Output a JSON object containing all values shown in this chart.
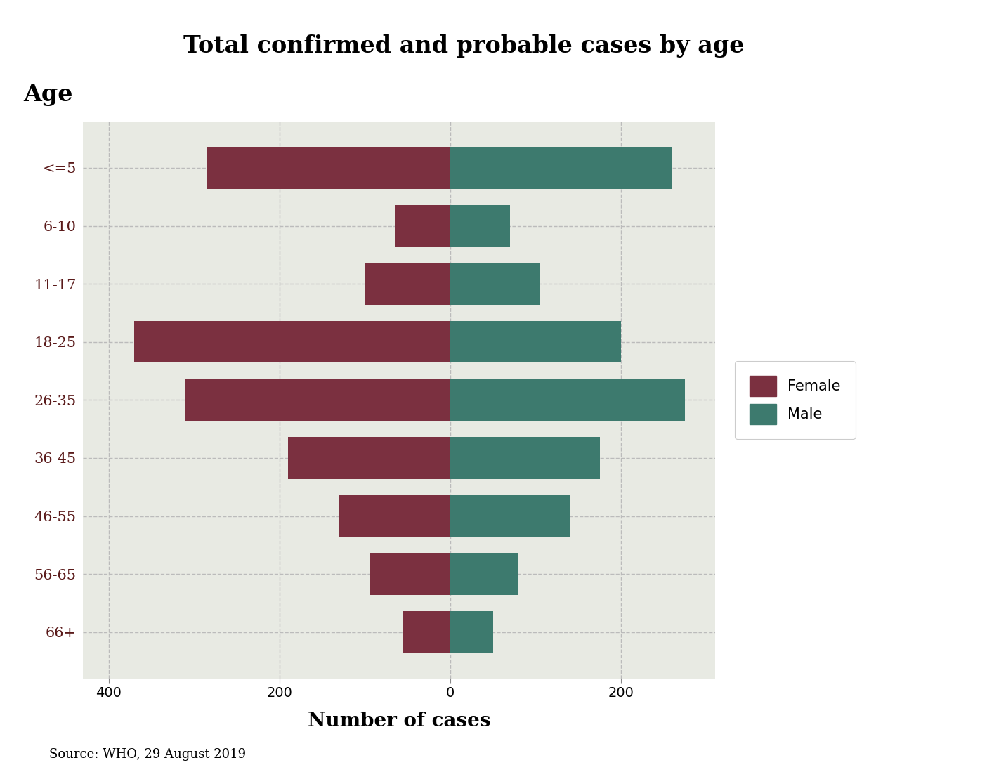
{
  "title": "Total confirmed and probable cases by age",
  "xlabel": "Number of cases",
  "ylabel": "Age",
  "source": "Source: WHO, 29 August 2019",
  "age_groups": [
    "<=5",
    "6-10",
    "11-17",
    "18-25",
    "26-35",
    "36-45",
    "46-55",
    "56-65",
    "66+"
  ],
  "female_values": [
    285,
    65,
    100,
    370,
    310,
    190,
    130,
    95,
    55
  ],
  "male_values": [
    260,
    70,
    105,
    200,
    275,
    175,
    140,
    80,
    50
  ],
  "female_color": "#7B3040",
  "male_color": "#3D7A6E",
  "bg_color": "#E8EAE3",
  "xlim": [
    -430,
    310
  ],
  "xticks": [
    -400,
    -200,
    0,
    200
  ],
  "xticklabels": [
    "400",
    "200",
    "0",
    "200"
  ],
  "bar_height": 0.72,
  "title_fontsize": 24,
  "axis_label_fontsize": 20,
  "tick_fontsize": 14,
  "ytick_fontsize": 15,
  "legend_fontsize": 15,
  "source_fontsize": 13
}
